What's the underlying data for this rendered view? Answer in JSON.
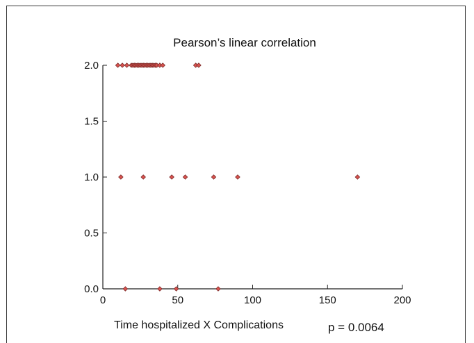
{
  "chart_data": {
    "type": "scatter",
    "title": "Pearson’s linear correlation",
    "xlabel": "Time hospitalized X Complications",
    "ylabel": "",
    "annotation": "p = 0.0064",
    "xlim": [
      0,
      200
    ],
    "ylim": [
      0,
      2
    ],
    "xticks": [
      "0",
      "50",
      "100",
      "150",
      "200"
    ],
    "yticks": [
      "0.0",
      "0.5",
      "1.0",
      "1.5",
      "2.0"
    ],
    "grid": false,
    "marker_color": "#d9534f",
    "marker_edge": "#7a2a28",
    "series": [
      {
        "x": [
          10,
          13,
          16,
          19,
          20,
          21,
          22,
          23,
          24,
          25,
          26,
          27,
          28,
          29,
          30,
          31,
          32,
          33,
          34,
          35,
          36,
          38,
          40,
          62,
          64,
          12,
          27,
          46,
          55,
          74,
          90,
          170,
          15,
          38,
          49,
          77
        ],
        "y": [
          2,
          2,
          2,
          2,
          2,
          2,
          2,
          2,
          2,
          2,
          2,
          2,
          2,
          2,
          2,
          2,
          2,
          2,
          2,
          2,
          2,
          2,
          2,
          2,
          2,
          1,
          1,
          1,
          1,
          1,
          1,
          1,
          0,
          0,
          0,
          0
        ]
      }
    ]
  }
}
